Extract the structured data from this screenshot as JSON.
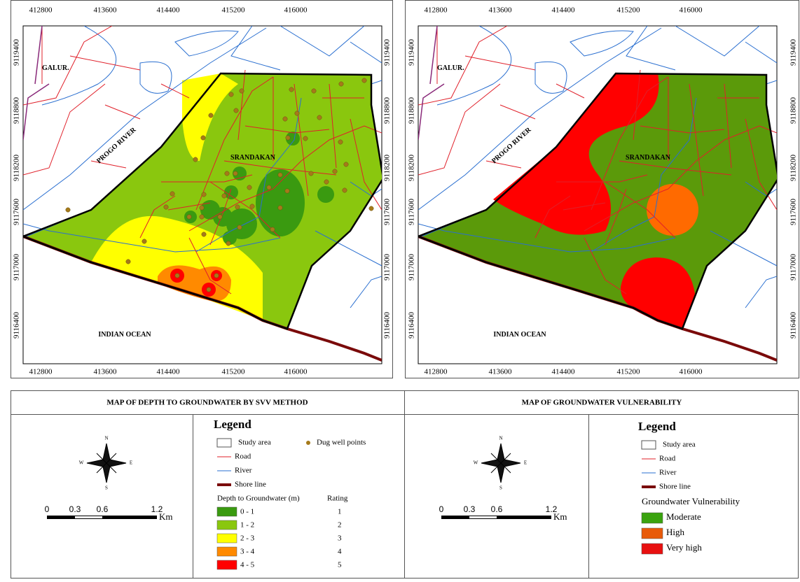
{
  "maps": [
    {
      "x_ticks": [
        412800,
        413600,
        414400,
        415200,
        416000
      ],
      "y_ticks": [
        9119400,
        9118800,
        9118200,
        9117600,
        9117000,
        9116400
      ],
      "labels": {
        "town": "GALUR.",
        "river": "PROGO RIVER",
        "village": "SRANDAKAN",
        "ocean": "INDIAN OCEAN"
      }
    },
    {
      "x_ticks": [
        412800,
        413600,
        414400,
        415200,
        416000
      ],
      "y_ticks": [
        9119400,
        9118800,
        9118200,
        9117600,
        9117000,
        9116400
      ],
      "labels": {
        "town": "GALUR.",
        "river": "PROGO RIVER",
        "village": "SRANDAKAN",
        "ocean": "INDIAN OCEAN"
      }
    }
  ],
  "panels": [
    {
      "title": "MAP OF DEPTH TO GROUNDWATER BY SVV METHOD",
      "compass": {
        "n": "N",
        "e": "E",
        "s": "S",
        "w": "W"
      },
      "scale": [
        0,
        0.3,
        0.6,
        1.2
      ],
      "scale_unit": "Km",
      "legend": {
        "title": "Legend",
        "study_area": "Study area",
        "wells": "Dug well points",
        "road": "Road",
        "river": "River",
        "shore": "Shore line",
        "class_title": "Depth to Groundwater (m)",
        "rating_title": "Rating",
        "classes": [
          {
            "label": "0 - 1",
            "rating": 1,
            "color": "#3a9a10"
          },
          {
            "label": "1 - 2",
            "rating": 2,
            "color": "#8ac70e"
          },
          {
            "label": "2 - 3",
            "rating": 3,
            "color": "#ffff00"
          },
          {
            "label": "3 - 4",
            "rating": 4,
            "color": "#ff8a00"
          },
          {
            "label": "4 - 5",
            "rating": 5,
            "color": "#ff0000"
          }
        ]
      }
    },
    {
      "title": "MAP OF GROUNDWATER VULNERABILITY",
      "compass": {
        "n": "N",
        "e": "E",
        "s": "S",
        "w": "W"
      },
      "scale": [
        0,
        0.3,
        0.6,
        1.2
      ],
      "scale_unit": "Km",
      "legend": {
        "title": "Legend",
        "study_area": "Study area",
        "road": "Road",
        "river": "River",
        "shore": "Shore line",
        "class_title": "Groundwater Vulnerability",
        "classes": [
          {
            "label": "Moderate",
            "color": "#3aa30f"
          },
          {
            "label": "High",
            "color": "#e85a0a"
          },
          {
            "label": "Very high",
            "color": "#e81010"
          }
        ]
      }
    }
  ]
}
